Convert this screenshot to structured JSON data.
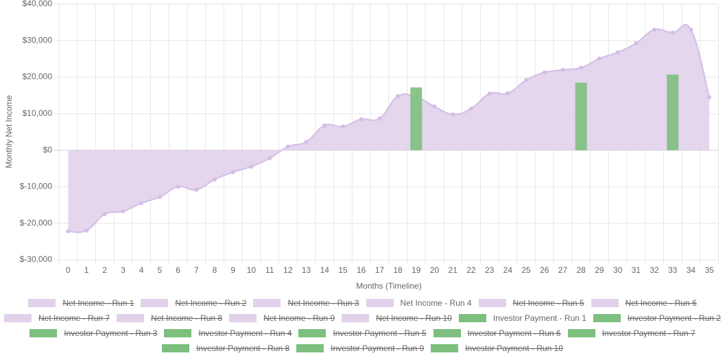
{
  "chart_data": {
    "type": "line",
    "x_label": "Months (Timeline)",
    "y_label": "Monthly Net Income",
    "categories": [
      "0",
      "1",
      "2",
      "3",
      "4",
      "5",
      "6",
      "7",
      "8",
      "9",
      "10",
      "11",
      "12",
      "13",
      "14",
      "15",
      "16",
      "17",
      "18",
      "19",
      "20",
      "21",
      "22",
      "23",
      "24",
      "25",
      "26",
      "27",
      "28",
      "29",
      "30",
      "31",
      "32",
      "33",
      "34",
      "35"
    ],
    "ylim": [
      -30000,
      40000
    ],
    "yticks": [
      {
        "value": -30000,
        "label": "$-30,000"
      },
      {
        "value": -20000,
        "label": "$-20,000"
      },
      {
        "value": -10000,
        "label": "$-10,000"
      },
      {
        "value": 0,
        "label": "$0"
      },
      {
        "value": 10000,
        "label": "$10,000"
      },
      {
        "value": 20000,
        "label": "$20,000"
      },
      {
        "value": 30000,
        "label": "$30,000"
      },
      {
        "value": 40000,
        "label": "$40,000"
      }
    ],
    "grid": true,
    "legend": "bottom",
    "series": [
      {
        "name": "Net Income - Run 1",
        "type": "line",
        "color": "#e1d1eb",
        "hidden": true
      },
      {
        "name": "Net Income - Run 2",
        "type": "line",
        "color": "#e1d1eb",
        "hidden": true
      },
      {
        "name": "Net Income - Run 3",
        "type": "line",
        "color": "#e1d1eb",
        "hidden": true
      },
      {
        "name": "Net Income - Run 4",
        "type": "line",
        "color": "#e1d1eb",
        "hidden": false,
        "values": [
          -22200,
          -22000,
          -17500,
          -16700,
          -14500,
          -12800,
          -10000,
          -10800,
          -8000,
          -6000,
          -4500,
          -2200,
          1000,
          2300,
          6800,
          6500,
          8500,
          8700,
          14800,
          14600,
          12000,
          9800,
          11400,
          15500,
          15600,
          19200,
          21300,
          22000,
          22600,
          25100,
          26800,
          29300,
          33000,
          32200,
          33000,
          14500
        ]
      },
      {
        "name": "Net Income - Run 5",
        "type": "line",
        "color": "#e1d1eb",
        "hidden": true
      },
      {
        "name": "Net Income - Run 6",
        "type": "line",
        "color": "#e1d1eb",
        "hidden": true
      },
      {
        "name": "Net Income - Run 7",
        "type": "line",
        "color": "#e1d1eb",
        "hidden": true
      },
      {
        "name": "Net Income - Run 8",
        "type": "line",
        "color": "#e1d1eb",
        "hidden": true
      },
      {
        "name": "Net Income - Run 9",
        "type": "line",
        "color": "#e1d1eb",
        "hidden": true
      },
      {
        "name": "Net Income - Run 10",
        "type": "line",
        "color": "#e1d1eb",
        "hidden": true
      },
      {
        "name": "Investor Payment - Run 1",
        "type": "bar",
        "color": "#7dbf7d",
        "hidden": false,
        "values": [
          null,
          null,
          null,
          null,
          null,
          null,
          null,
          null,
          null,
          null,
          null,
          null,
          null,
          null,
          null,
          null,
          null,
          null,
          null,
          17200,
          null,
          null,
          null,
          null,
          null,
          null,
          null,
          null,
          18500,
          null,
          null,
          null,
          null,
          20700,
          null,
          null
        ]
      },
      {
        "name": "Investor Payment - Run 2",
        "type": "bar",
        "color": "#7dbf7d",
        "hidden": true
      },
      {
        "name": "Investor Payment - Run 3",
        "type": "bar",
        "color": "#7dbf7d",
        "hidden": true
      },
      {
        "name": "Investor Payment - Run 4",
        "type": "bar",
        "color": "#7dbf7d",
        "hidden": true
      },
      {
        "name": "Investor Payment - Run 5",
        "type": "bar",
        "color": "#7dbf7d",
        "hidden": true
      },
      {
        "name": "Investor Payment - Run 6",
        "type": "bar",
        "color": "#7dbf7d",
        "hidden": true
      },
      {
        "name": "Investor Payment - Run 7",
        "type": "bar",
        "color": "#7dbf7d",
        "hidden": true
      },
      {
        "name": "Investor Payment - Run 8",
        "type": "bar",
        "color": "#7dbf7d",
        "hidden": true
      },
      {
        "name": "Investor Payment - Run 9",
        "type": "bar",
        "color": "#7dbf7d",
        "hidden": true
      },
      {
        "name": "Investor Payment - Run 10",
        "type": "bar",
        "color": "#7dbf7d",
        "hidden": true
      }
    ]
  }
}
